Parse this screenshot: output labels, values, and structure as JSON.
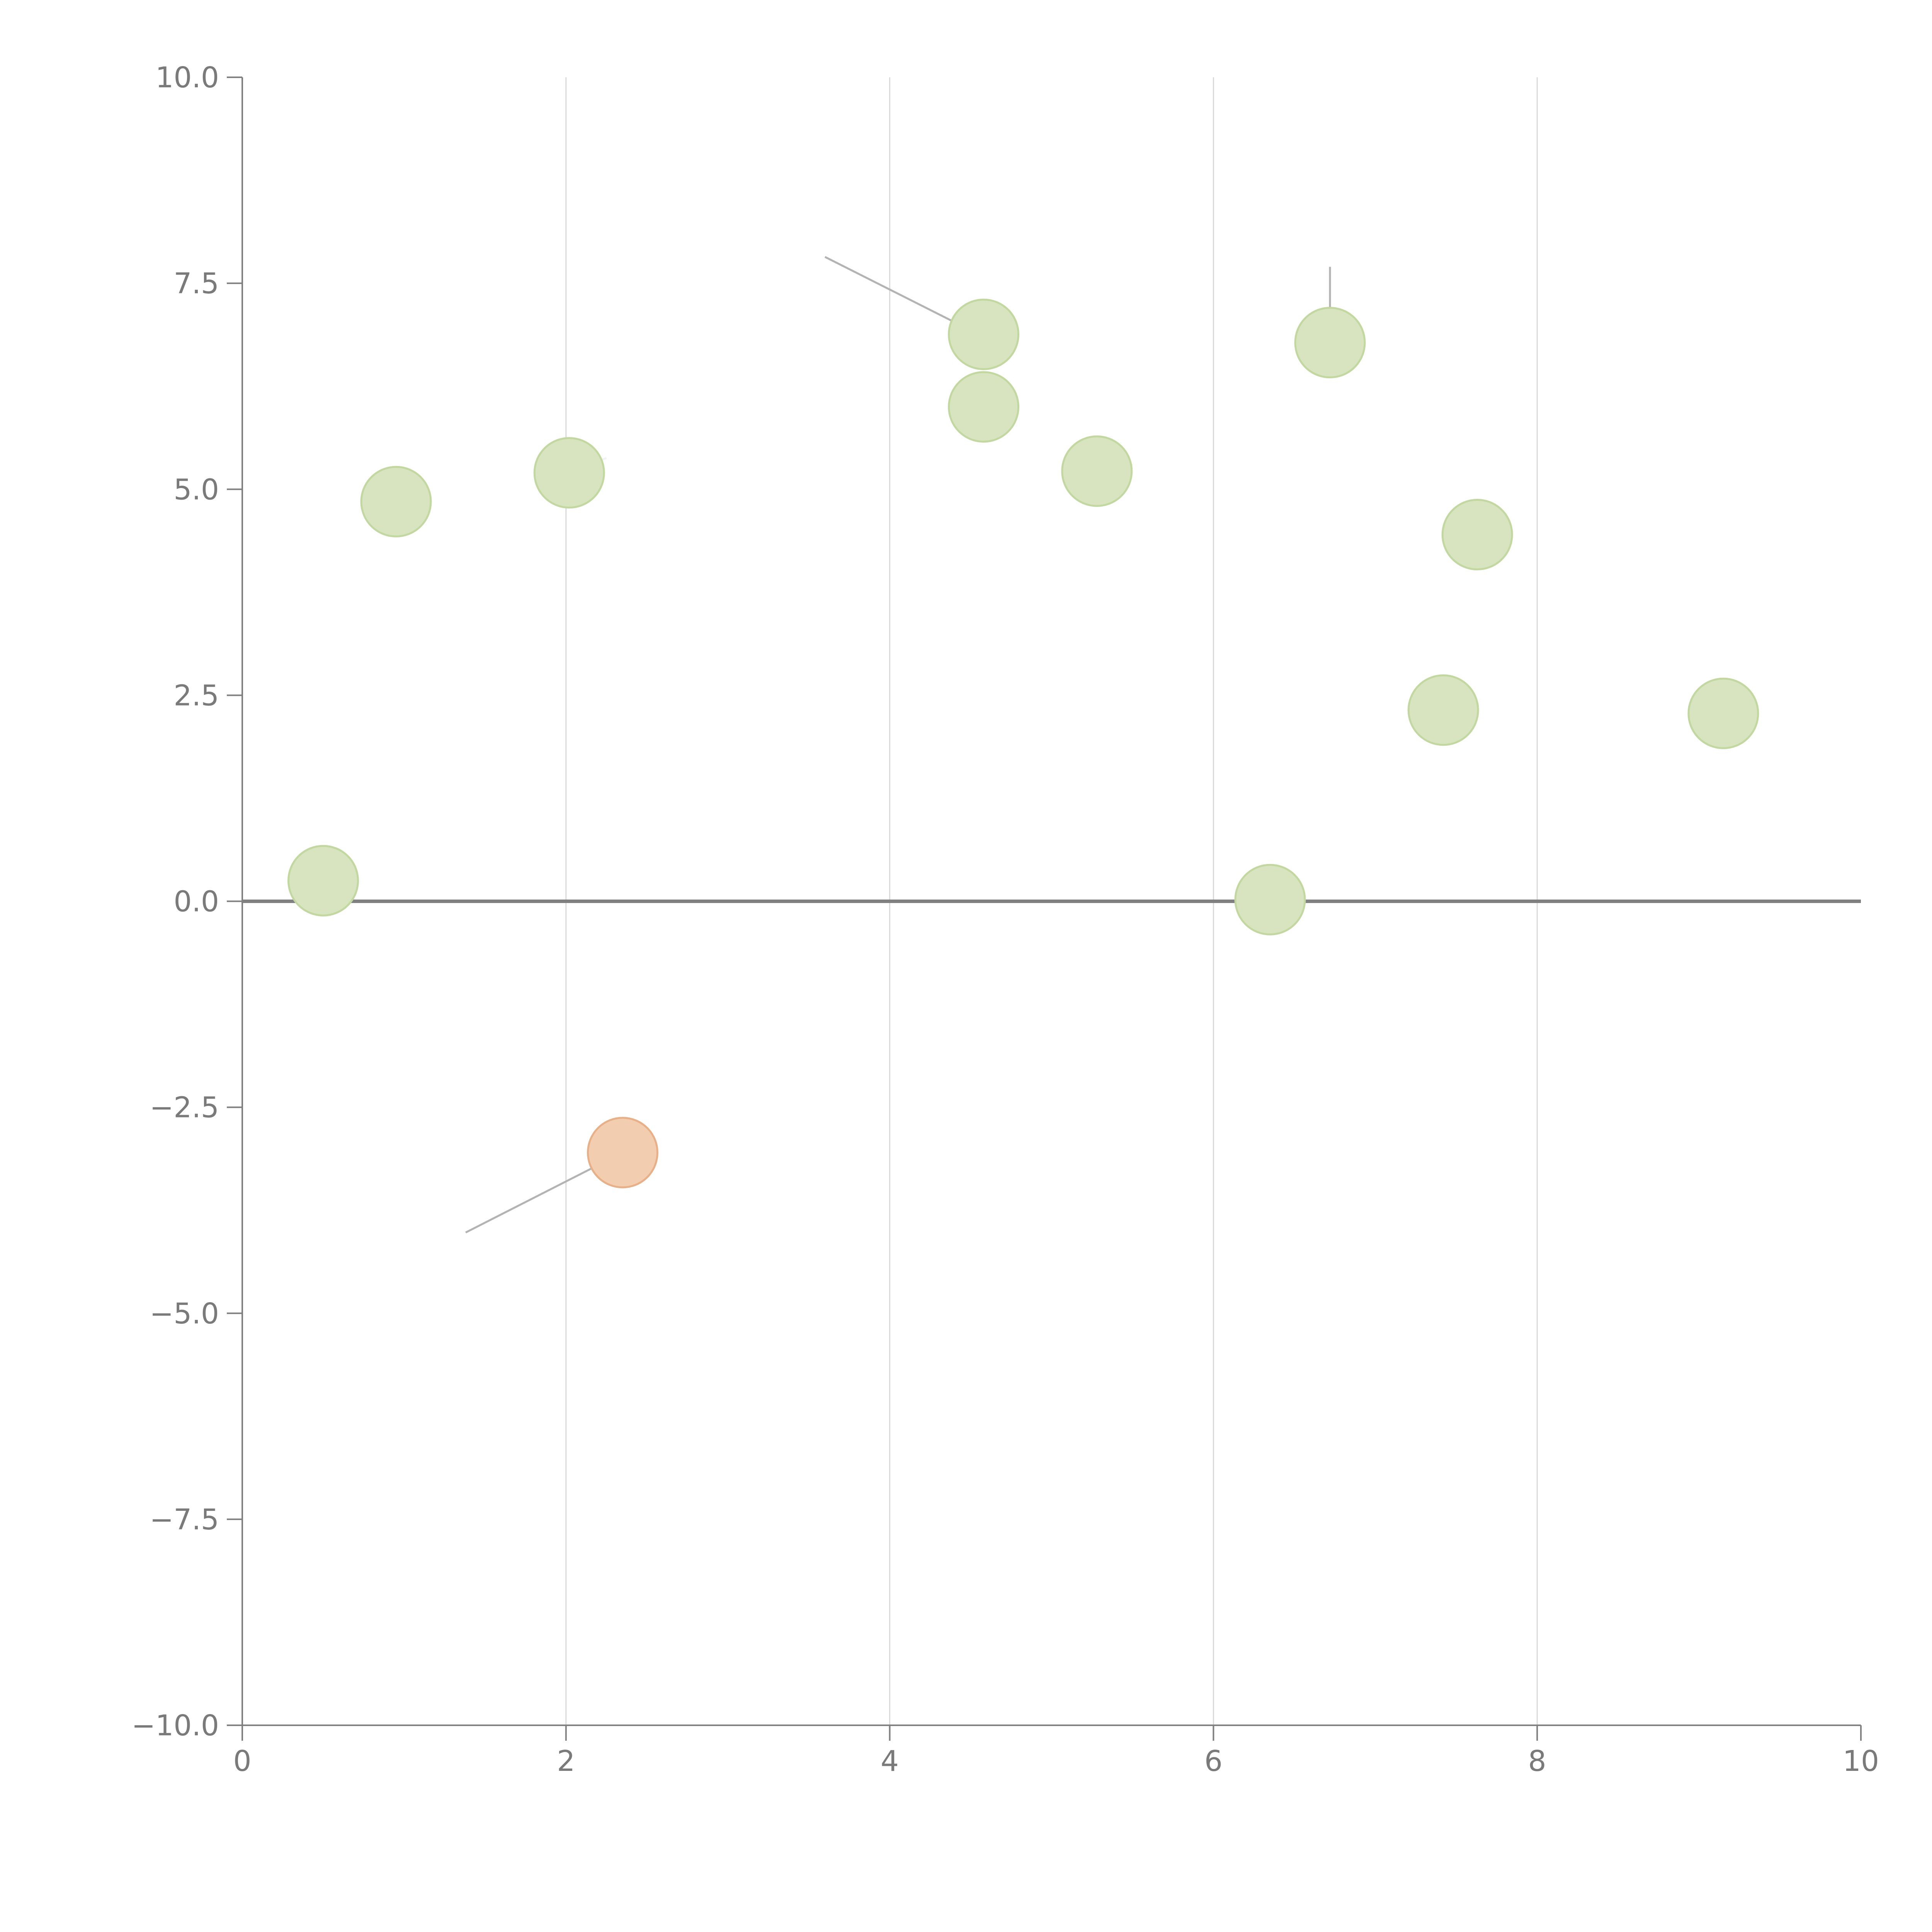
{
  "chart_data": {
    "type": "scatter",
    "title": "",
    "xlabel": "",
    "ylabel": "",
    "xlim": [
      0,
      10
    ],
    "ylim": [
      -10,
      10
    ],
    "x_ticks": [
      0,
      2,
      4,
      6,
      8,
      10
    ],
    "y_ticks": [
      10,
      7.5,
      5,
      2.5,
      0,
      -2.5,
      -5,
      -7.5,
      -10
    ],
    "x_tick_labels": [
      "0",
      "2",
      "4",
      "6",
      "8",
      "10"
    ],
    "y_tick_labels": [
      "10.0",
      "7.5",
      "5.0",
      "2.5",
      "0.0",
      "−2.5",
      "−5.0",
      "−7.5",
      "−10.0"
    ],
    "grid": "vertical",
    "reference_line_y": 0,
    "colors": {
      "positive_fill": "#d8e4c0",
      "positive_stroke": "#c2d8a0",
      "negative_fill": "#f2cdb0",
      "negative_stroke": "#e8b088"
    },
    "points": [
      {
        "x": 0.5,
        "y": 0.25,
        "category": "positive"
      },
      {
        "x": 0.95,
        "y": 4.85,
        "category": "positive"
      },
      {
        "x": 2.02,
        "y": 5.2,
        "category": "positive"
      },
      {
        "x": 2.35,
        "y": -3.05,
        "category": "negative"
      },
      {
        "x": 4.58,
        "y": 6.88,
        "category": "positive"
      },
      {
        "x": 4.58,
        "y": 6.0,
        "category": "positive"
      },
      {
        "x": 5.28,
        "y": 5.22,
        "category": "positive"
      },
      {
        "x": 6.35,
        "y": 0.02,
        "category": "positive"
      },
      {
        "x": 6.72,
        "y": 6.78,
        "category": "positive"
      },
      {
        "x": 7.42,
        "y": 2.32,
        "category": "positive"
      },
      {
        "x": 7.63,
        "y": 4.45,
        "category": "positive"
      },
      {
        "x": 9.15,
        "y": 2.28,
        "category": "positive"
      }
    ],
    "leader_lines": [
      {
        "from": [
          4.55,
          6.88
        ],
        "to": [
          3.6,
          7.82
        ],
        "style": "gray"
      },
      {
        "from": [
          6.72,
          6.85
        ],
        "to": [
          6.72,
          7.7
        ],
        "style": "gray"
      },
      {
        "from": [
          2.32,
          -3.08
        ],
        "to": [
          1.38,
          -4.02
        ],
        "style": "gray"
      },
      {
        "from": [
          2.05,
          5.22
        ],
        "to": [
          2.25,
          5.38
        ],
        "style": "light"
      },
      {
        "from": [
          5.3,
          5.24
        ],
        "to": [
          5.5,
          5.3
        ],
        "style": "light"
      },
      {
        "from": [
          7.4,
          2.34
        ],
        "to": [
          7.25,
          2.52
        ],
        "style": "light"
      },
      {
        "from": [
          9.13,
          2.3
        ],
        "to": [
          8.95,
          2.42
        ],
        "style": "light"
      }
    ]
  }
}
